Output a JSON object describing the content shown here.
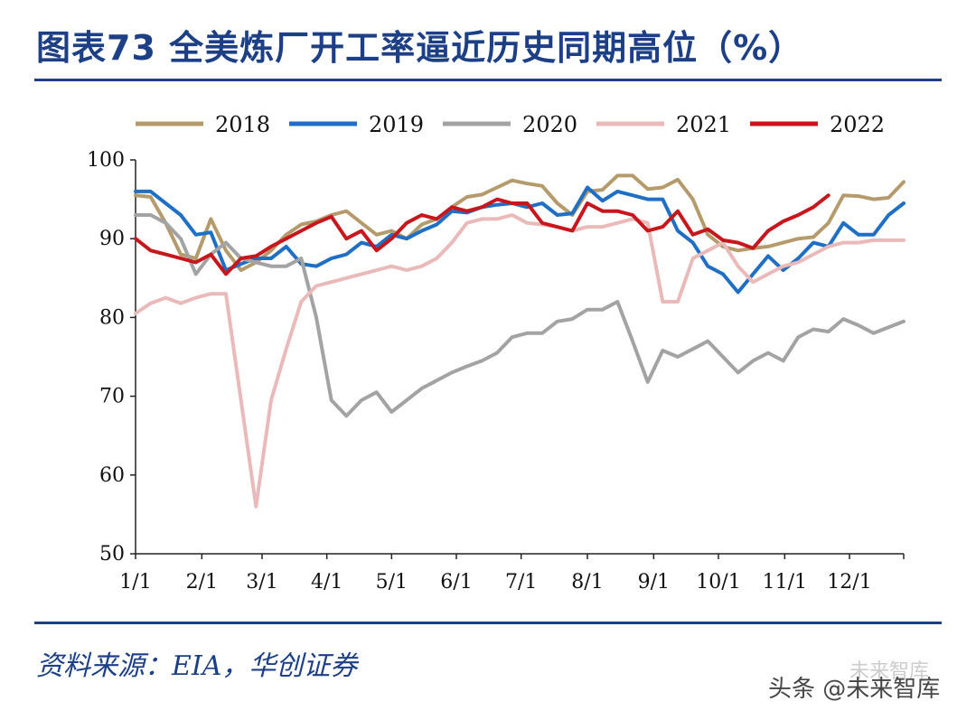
{
  "header": {
    "title": "图表73 全美炼厂开工率逼近历史同期高位（%）"
  },
  "footer": {
    "source": "资料来源：EIA，华创证券",
    "watermark": "头条 @未来智库",
    "watermark_faint": "未来智库"
  },
  "chart_data": {
    "type": "line",
    "title": "图表73 全美炼厂开工率逼近历史同期高位（%）",
    "xlabel": "",
    "ylabel": "",
    "ylim": [
      50,
      100
    ],
    "yticks": [
      50,
      60,
      70,
      80,
      90,
      100
    ],
    "xlim": [
      1,
      52
    ],
    "xticks": [
      {
        "week": 1,
        "label": "1/1"
      },
      {
        "week": 5.4,
        "label": "2/1"
      },
      {
        "week": 9.4,
        "label": "3/1"
      },
      {
        "week": 13.7,
        "label": "4/1"
      },
      {
        "week": 18,
        "label": "5/1"
      },
      {
        "week": 22.3,
        "label": "6/1"
      },
      {
        "week": 26.6,
        "label": "7/1"
      },
      {
        "week": 31,
        "label": "8/1"
      },
      {
        "week": 35.4,
        "label": "9/1"
      },
      {
        "week": 39.7,
        "label": "10/1"
      },
      {
        "week": 44.1,
        "label": "11/1"
      },
      {
        "week": 48.4,
        "label": "12/1"
      }
    ],
    "legend_position": "top",
    "colors": {
      "2018": "#b59b6b",
      "2019": "#1f6fc4",
      "2020": "#a3a3a3",
      "2021": "#eab9b9",
      "2022": "#c8161d"
    },
    "series": [
      {
        "name": "2018",
        "values": [
          95.5,
          95.3,
          92.0,
          88.0,
          87.5,
          92.5,
          88.5,
          86.0,
          87.0,
          88.5,
          90.5,
          91.8,
          92.2,
          93.0,
          93.5,
          92.0,
          90.5,
          91.0,
          90.0,
          91.8,
          92.5,
          94.0,
          95.3,
          95.6,
          96.5,
          97.4,
          97.0,
          96.7,
          94.5,
          93.0,
          96.0,
          96.2,
          98.0,
          98.0,
          96.3,
          96.5,
          97.5,
          95.0,
          90.5,
          89.0,
          88.5,
          88.8,
          89.0,
          89.5,
          90.0,
          90.2,
          92.0,
          95.5,
          95.4,
          95.0,
          95.2,
          97.2
        ],
        "x": [
          1,
          2,
          3,
          4,
          5,
          6,
          7,
          8,
          9,
          10,
          11,
          12,
          13,
          14,
          15,
          16,
          17,
          18,
          19,
          20,
          21,
          22,
          23,
          24,
          25,
          26,
          27,
          28,
          29,
          30,
          31,
          32,
          33,
          34,
          35,
          36,
          37,
          38,
          39,
          40,
          41,
          42,
          43,
          44,
          45,
          46,
          47,
          48,
          49,
          50,
          51,
          52
        ]
      },
      {
        "name": "2019",
        "values": [
          96.0,
          96.0,
          94.5,
          93.0,
          90.5,
          90.8,
          86.0,
          86.8,
          87.5,
          87.5,
          89.0,
          86.8,
          86.5,
          87.5,
          88.0,
          89.5,
          89.0,
          90.5,
          90.0,
          91.0,
          91.8,
          93.5,
          93.3,
          94.0,
          94.3,
          94.5,
          94.0,
          94.5,
          93.0,
          93.2,
          96.5,
          94.8,
          96.0,
          95.5,
          95.0,
          95.0,
          91.0,
          89.5,
          86.5,
          85.5,
          83.2,
          85.5,
          87.8,
          86.0,
          87.5,
          89.5,
          89.0,
          92.0,
          90.5,
          90.5,
          93.0,
          94.5
        ],
        "x": [
          1,
          2,
          3,
          4,
          5,
          6,
          7,
          8,
          9,
          10,
          11,
          12,
          13,
          14,
          15,
          16,
          17,
          18,
          19,
          20,
          21,
          22,
          23,
          24,
          25,
          26,
          27,
          28,
          29,
          30,
          31,
          32,
          33,
          34,
          35,
          36,
          37,
          38,
          39,
          40,
          41,
          42,
          43,
          44,
          45,
          46,
          47,
          48,
          49,
          50,
          51,
          52
        ]
      },
      {
        "name": "2020",
        "values": [
          93.0,
          93.0,
          92.0,
          90.0,
          85.5,
          88.0,
          89.5,
          87.5,
          87.0,
          86.5,
          86.5,
          87.5,
          80.0,
          69.5,
          67.5,
          69.5,
          70.5,
          68.0,
          69.5,
          71.0,
          72.0,
          73.0,
          73.8,
          74.5,
          75.5,
          77.5,
          78.0,
          78.0,
          79.5,
          79.8,
          81.0,
          81.0,
          82.0,
          77.0,
          71.8,
          75.8,
          75.0,
          76.0,
          77.0,
          75.0,
          73.0,
          74.5,
          75.5,
          74.5,
          77.5,
          78.5,
          78.2,
          79.8,
          79.0,
          78.0,
          79.5
        ],
        "x": [
          1,
          2,
          3,
          4,
          5,
          6,
          7,
          8,
          9,
          10,
          11,
          12,
          13,
          14,
          15,
          16,
          17,
          18,
          19,
          20,
          21,
          22,
          23,
          24,
          25,
          26,
          27,
          28,
          29,
          30,
          31,
          32,
          33,
          34,
          35,
          36,
          37,
          38,
          39,
          40,
          41,
          42,
          43,
          44,
          45,
          46,
          47,
          48,
          49,
          50,
          52
        ]
      },
      {
        "name": "2021",
        "values": [
          80.5,
          81.8,
          82.5,
          81.8,
          82.5,
          83.0,
          83.0,
          56.0,
          69.5,
          76.0,
          82.0,
          84.0,
          84.5,
          85.0,
          85.5,
          86.0,
          86.5,
          86.0,
          86.5,
          87.5,
          89.5,
          92.0,
          92.5,
          92.5,
          93.0,
          92.0,
          91.8,
          91.5,
          91.0,
          91.5,
          91.5,
          92.0,
          92.5,
          92.0,
          82.0,
          82.0,
          87.5,
          88.5,
          89.5,
          86.5,
          84.5,
          85.5,
          86.5,
          87.0,
          88.0,
          89.0,
          89.5,
          89.5,
          89.8,
          89.8,
          89.8
        ],
        "x": [
          1,
          2,
          3,
          4,
          5,
          6,
          7,
          9,
          10,
          11,
          12,
          13,
          14,
          15,
          16,
          17,
          18,
          19,
          20,
          21,
          22,
          23,
          24,
          25,
          26,
          27,
          28,
          29,
          30,
          31,
          32,
          33,
          34,
          35,
          36,
          37,
          38,
          39,
          40,
          41,
          42,
          43,
          44,
          45,
          46,
          47,
          48,
          49,
          50,
          51,
          52
        ]
      },
      {
        "name": "2022",
        "values": [
          90.0,
          88.5,
          88.0,
          87.5,
          87.0,
          88.0,
          85.5,
          87.5,
          87.8,
          89.0,
          90.0,
          91.0,
          92.0,
          92.8,
          90.0,
          91.0,
          88.5,
          90.0,
          92.0,
          93.0,
          92.5,
          94.0,
          93.5,
          94.0,
          95.0,
          94.5,
          94.5,
          92.0,
          91.0,
          94.5,
          93.5,
          93.5,
          93.0,
          91.0,
          91.5,
          93.5,
          90.5,
          91.2,
          89.8,
          89.5,
          88.8,
          91.0,
          92.2,
          93.0,
          94.0,
          95.5
        ],
        "x": [
          1,
          2,
          3,
          4,
          5,
          6,
          7,
          8,
          9,
          10,
          11,
          12,
          13,
          14,
          15,
          16,
          17,
          18,
          19,
          20,
          21,
          22,
          23,
          24,
          25,
          26,
          27,
          28,
          30,
          31,
          32,
          33,
          34,
          35,
          36,
          37,
          38,
          39,
          40,
          41,
          42,
          43,
          44,
          45,
          46,
          47
        ]
      }
    ]
  }
}
